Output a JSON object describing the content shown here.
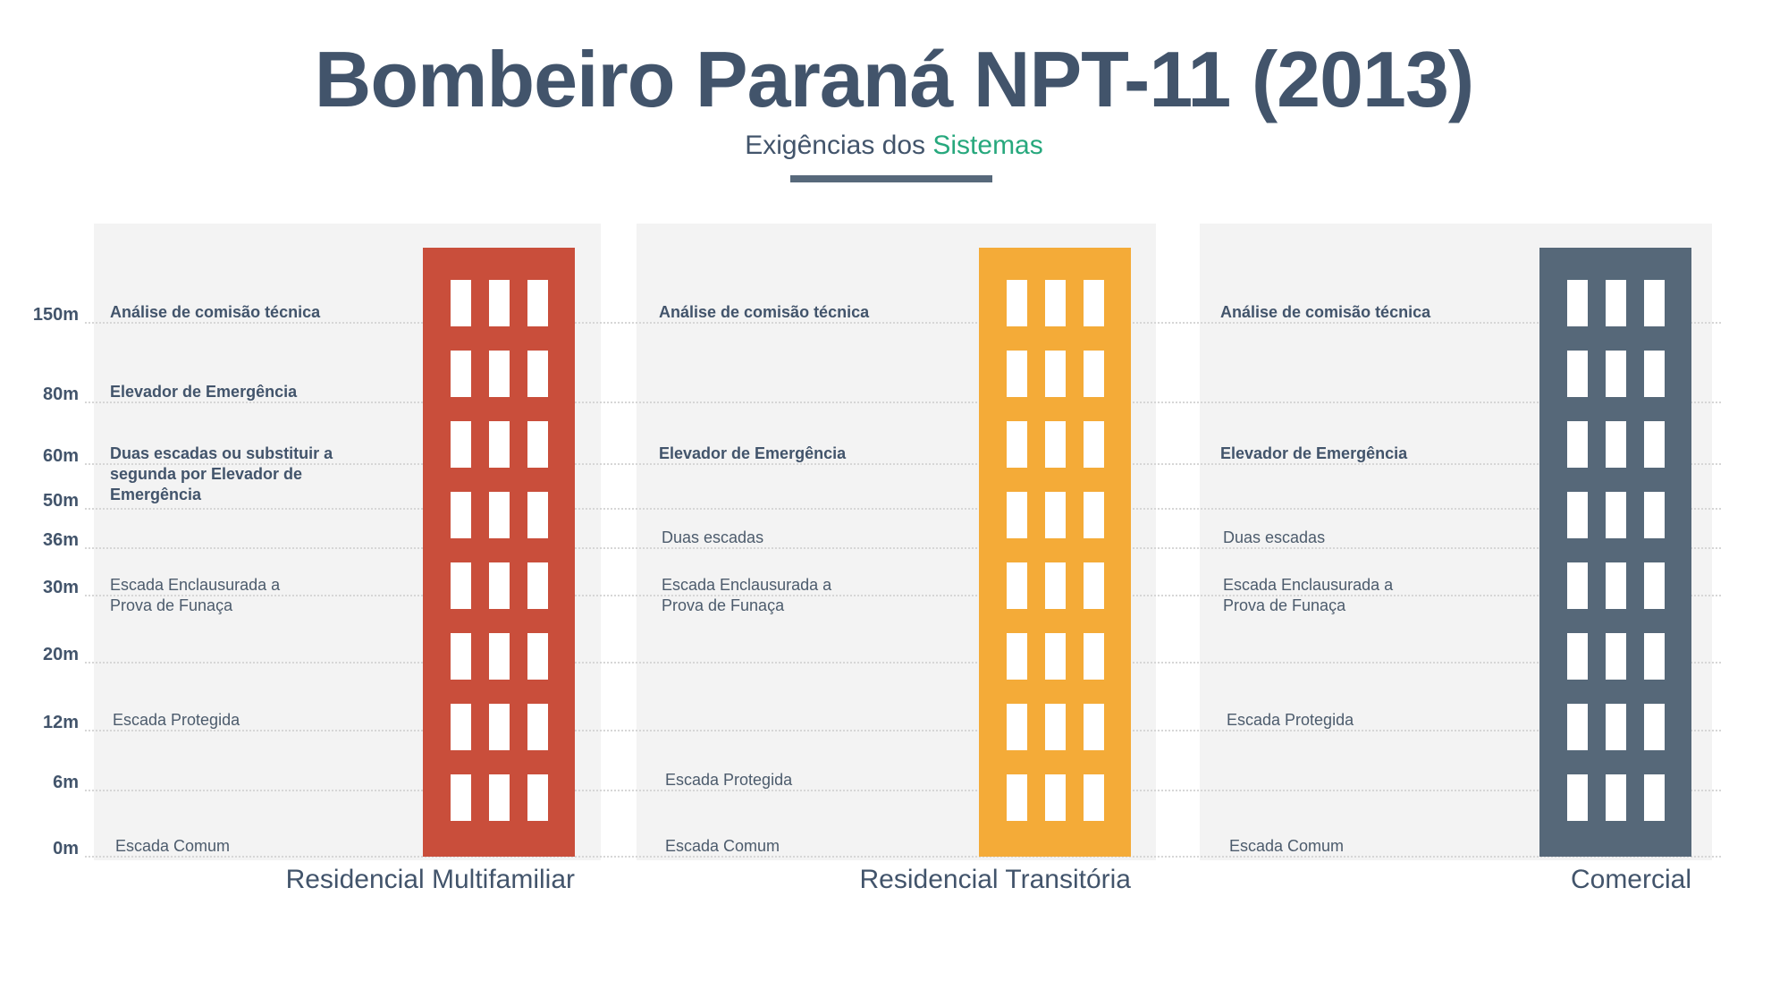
{
  "title": "Bombeiro Paraná NPT-11 (2013)",
  "subtitle": {
    "prefix": "Exigências dos ",
    "highlight": "Sistemas"
  },
  "colors": {
    "heading_text": "#42546B",
    "accent_green": "#27A87D",
    "panel_gray": "#F3F3F3",
    "gridline_gray": "#D6D6D6",
    "building_red": "#C94E3B",
    "building_orange": "#F4AB38",
    "building_slate": "#566879"
  },
  "axis": {
    "unit": "m",
    "labels": [
      "150m",
      "80m",
      "60m",
      "50m",
      "36m",
      "30m",
      "20m",
      "12m",
      "6m",
      "0m"
    ]
  },
  "columns": [
    {
      "name": "Residencial Multifamiliar",
      "building_color": "#C94E3B",
      "annotations": [
        {
          "text": "Análise de comisão técnica",
          "height": "150m",
          "emphasis": true
        },
        {
          "text": "Elevador de Emergência",
          "height": "80m",
          "emphasis": true
        },
        {
          "text": "Duas escadas ou substituir a segunda por Elevador de Emergência",
          "height": "60m",
          "emphasis": true
        },
        {
          "text": "Escada Enclausurada a Prova de Funaça",
          "height": "30m",
          "emphasis": false
        },
        {
          "text": "Escada Protegida",
          "height": "12m",
          "emphasis": false
        },
        {
          "text": "Escada Comum",
          "height": "0m",
          "emphasis": false
        }
      ]
    },
    {
      "name": "Residencial Transitória",
      "building_color": "#F4AB38",
      "annotations": [
        {
          "text": "Análise de comisão técnica",
          "height": "150m",
          "emphasis": true
        },
        {
          "text": "Elevador de Emergência",
          "height": "60m",
          "emphasis": true
        },
        {
          "text": "Duas escadas",
          "height": "36m",
          "emphasis": false
        },
        {
          "text": "Escada Enclausurada a Prova de Funaça",
          "height": "30m",
          "emphasis": false
        },
        {
          "text": "Escada Protegida",
          "height": "6m",
          "emphasis": false
        },
        {
          "text": "Escada Comum",
          "height": "0m",
          "emphasis": false
        }
      ]
    },
    {
      "name": "Comercial",
      "building_color": "#566879",
      "annotations": [
        {
          "text": "Análise de comisão técnica",
          "height": "150m",
          "emphasis": true
        },
        {
          "text": "Elevador de Emergência",
          "height": "60m",
          "emphasis": true
        },
        {
          "text": "Duas escadas",
          "height": "36m",
          "emphasis": false
        },
        {
          "text": "Escada Enclausurada a Prova de Funaça",
          "height": "30m",
          "emphasis": false
        },
        {
          "text": "Escada Protegida",
          "height": "12m",
          "emphasis": false
        },
        {
          "text": "Escada Comum",
          "height": "0m",
          "emphasis": false
        }
      ]
    }
  ]
}
